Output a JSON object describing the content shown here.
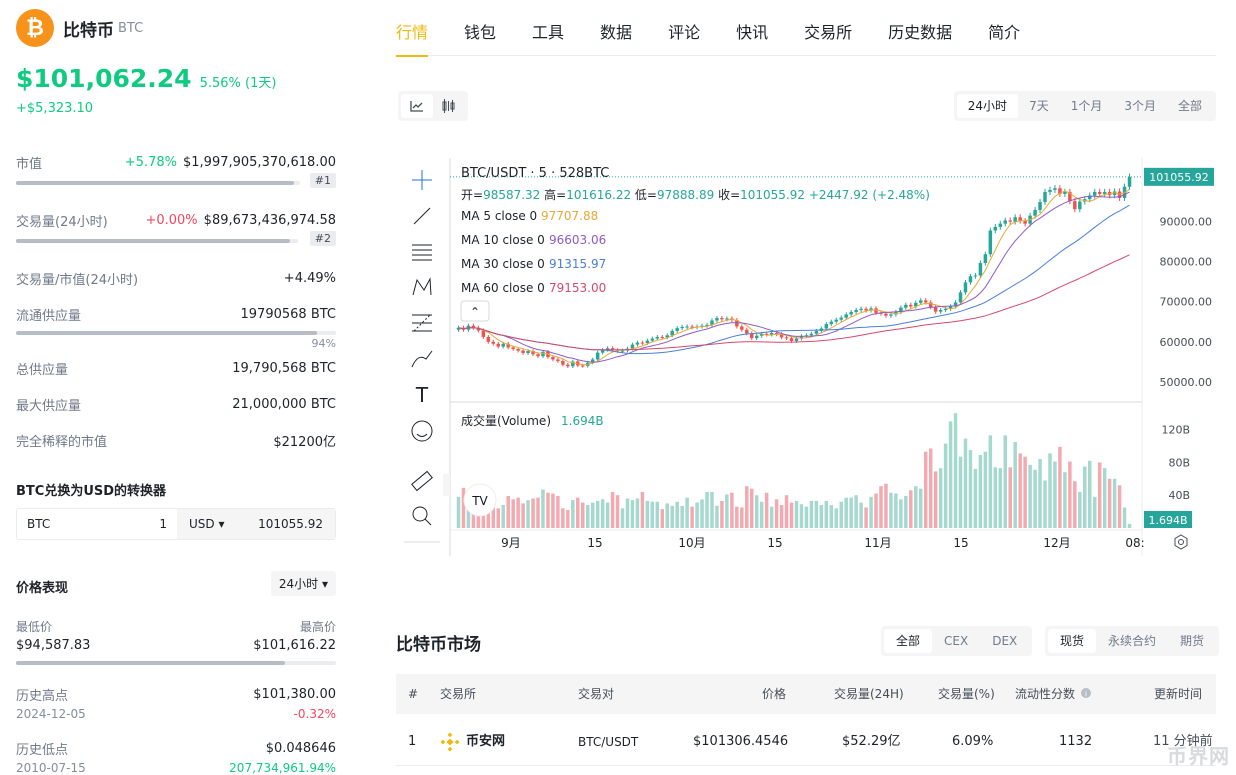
{
  "coin": {
    "logo_glyph": "₿",
    "name": "比特币",
    "symbol": "BTC"
  },
  "price": {
    "value": "$101,062.24",
    "change_pct": "5.56% (1天)",
    "change_abs": "+$5,323.10"
  },
  "stats": {
    "market_cap": {
      "label": "市值",
      "change": "+5.78%",
      "value": "$1,997,905,370,618.00",
      "rank": "#1",
      "fill": 0.98
    },
    "volume": {
      "label": "交易量(24小时)",
      "change": "+0.00%",
      "value": "$89,673,436,974.58",
      "rank": "#2",
      "fill": 0.97
    },
    "vol_mcap": {
      "label": "交易量/市值(24小时)",
      "value": "+4.49%"
    },
    "circulating": {
      "label": "流通供应量",
      "value": "19790568 BTC",
      "percent": "94%",
      "fill": 0.94
    },
    "total": {
      "label": "总供应量",
      "value": "19,790,568 BTC"
    },
    "max": {
      "label": "最大供应量",
      "value": "21,000,000 BTC"
    },
    "fdv": {
      "label": "完全稀释的市值",
      "value": "$21200亿"
    }
  },
  "converter": {
    "title": "BTC兑换为USD的转换器",
    "from_sym": "BTC",
    "from_amount": "1",
    "to_sym": "USD ▾",
    "to_amount": "101055.92"
  },
  "performance": {
    "title": "价格表现",
    "period": "24小时 ▾",
    "low_label": "最低价",
    "low": "$94,587.83",
    "high_label": "最高价",
    "high": "$101,616.22",
    "range_fill": 0.84,
    "ath_label": "历史高点",
    "ath_date": "2024-12-05",
    "ath": "$101,380.00",
    "ath_change": "-0.32%",
    "atl_label": "历史低点",
    "atl_date": "2010-07-15",
    "atl": "$0.048646",
    "atl_change": "207,734,961.94%"
  },
  "tabs": [
    "行情",
    "钱包",
    "工具",
    "数据",
    "评论",
    "快讯",
    "交易所",
    "历史数据",
    "简介"
  ],
  "range_tabs": [
    "24小时",
    "7天",
    "1个月",
    "3个月",
    "全部"
  ],
  "chart_data": {
    "type": "candlestick",
    "title": "BTC/USDT · 5 · 528BTC",
    "ohlc": {
      "open_label": "开",
      "open": "98587.32",
      "high_label": "高",
      "high": "101616.22",
      "low_label": "低",
      "low": "97888.89",
      "close_label": "收",
      "close": "101055.92",
      "change": "+2447.92 (+2.48%)"
    },
    "ma": [
      {
        "name": "MA 5 close 0",
        "value": "97707.88",
        "color": "#e8a838"
      },
      {
        "name": "MA 10 close 0",
        "value": "96603.06",
        "color": "#8e5bc4"
      },
      {
        "name": "MA 30 close 0",
        "value": "91315.97",
        "color": "#4a7fd6"
      },
      {
        "name": "MA 60 close 0",
        "value": "79153.00",
        "color": "#d64a6a"
      }
    ],
    "last_price": "101055.92",
    "y_ticks": [
      "90000.00",
      "80000.00",
      "70000.00",
      "60000.00",
      "50000.00"
    ],
    "y_tick_values": [
      90000,
      80000,
      70000,
      60000,
      50000
    ],
    "volume_label": "成交量(Volume)",
    "volume_value": "1.694B",
    "vol_ticks": [
      "120B",
      "80B",
      "40B"
    ],
    "vol_tick_values": [
      120,
      80,
      40
    ],
    "x_ticks": [
      "9月",
      "15",
      "10月",
      "15",
      "11月",
      "15",
      "12月",
      "08:"
    ],
    "closes": [
      63500,
      63000,
      64000,
      63500,
      62800,
      61200,
      60000,
      59500,
      58800,
      59500,
      58600,
      58200,
      57800,
      57200,
      57700,
      56900,
      56400,
      57500,
      56200,
      55600,
      55200,
      54300,
      53900,
      55100,
      54100,
      54000,
      54800,
      55600,
      57300,
      58000,
      58400,
      57900,
      57700,
      57800,
      58300,
      59300,
      59800,
      59700,
      60300,
      60800,
      61200,
      61100,
      61600,
      62700,
      63400,
      63700,
      63800,
      63600,
      63800,
      64000,
      64200,
      65300,
      65900,
      65600,
      65800,
      65400,
      63800,
      63000,
      62100,
      60900,
      61500,
      62000,
      61800,
      62200,
      61900,
      61100,
      60900,
      60200,
      60800,
      61400,
      61600,
      62000,
      62700,
      63300,
      64400,
      65000,
      65500,
      66000,
      66800,
      67400,
      67900,
      68200,
      67800,
      68300,
      67200,
      67000,
      66500,
      66800,
      67400,
      68500,
      69200,
      68800,
      69700,
      70300,
      69800,
      68600,
      67500,
      67900,
      68200,
      68800,
      69800,
      72300,
      74800,
      76300,
      76500,
      79600,
      81800,
      87700,
      88600,
      89400,
      90200,
      89900,
      91000,
      90100,
      89400,
      91400,
      92800,
      94800,
      97300,
      97800,
      98200,
      96800,
      97300,
      95000,
      93000,
      94900,
      95500,
      96400,
      97300,
      96800,
      97300,
      96500,
      97400,
      95800,
      98587,
      101056
    ],
    "volumes": [
      38,
      49,
      26,
      30,
      33,
      27,
      43,
      35,
      24,
      28,
      39,
      35,
      37,
      30,
      34,
      36,
      37,
      47,
      43,
      42,
      39,
      24,
      22,
      34,
      37,
      31,
      28,
      31,
      33,
      35,
      31,
      44,
      40,
      24,
      36,
      34,
      36,
      44,
      33,
      32,
      32,
      23,
      30,
      27,
      32,
      27,
      37,
      26,
      31,
      35,
      44,
      44,
      27,
      33,
      41,
      43,
      26,
      25,
      51,
      48,
      40,
      32,
      43,
      26,
      35,
      28,
      40,
      31,
      33,
      29,
      26,
      33,
      33,
      28,
      33,
      28,
      24,
      32,
      37,
      37,
      40,
      31,
      25,
      38,
      42,
      51,
      54,
      43,
      42,
      35,
      39,
      46,
      51,
      48,
      93,
      97,
      69,
      73,
      103,
      130,
      140,
      87,
      109,
      95,
      72,
      89,
      93,
      113,
      74,
      73,
      113,
      74,
      105,
      91,
      87,
      77,
      71,
      84,
      58,
      91,
      81,
      99,
      68,
      81,
      57,
      44,
      75,
      82,
      38,
      80,
      73,
      60,
      60,
      52,
      25,
      5
    ],
    "volumes_unit": "B"
  },
  "market": {
    "title": "比特币市场",
    "seg1": [
      "全部",
      "CEX",
      "DEX"
    ],
    "seg2": [
      "现货",
      "永续合约",
      "期货"
    ],
    "headers": [
      "#",
      "交易所",
      "交易对",
      "价格",
      "交易量(24H)",
      "交易量(%)",
      "流动性分数",
      "更新时间"
    ],
    "rows": [
      {
        "rank": "1",
        "exchange": "币安网",
        "pair": "BTC/USDT",
        "price": "$101306.4546",
        "volume": "$52.29亿",
        "vol_pct": "6.09%",
        "liquidity": "1132",
        "updated": "11 分钟前"
      }
    ]
  },
  "watermark": "币界网"
}
